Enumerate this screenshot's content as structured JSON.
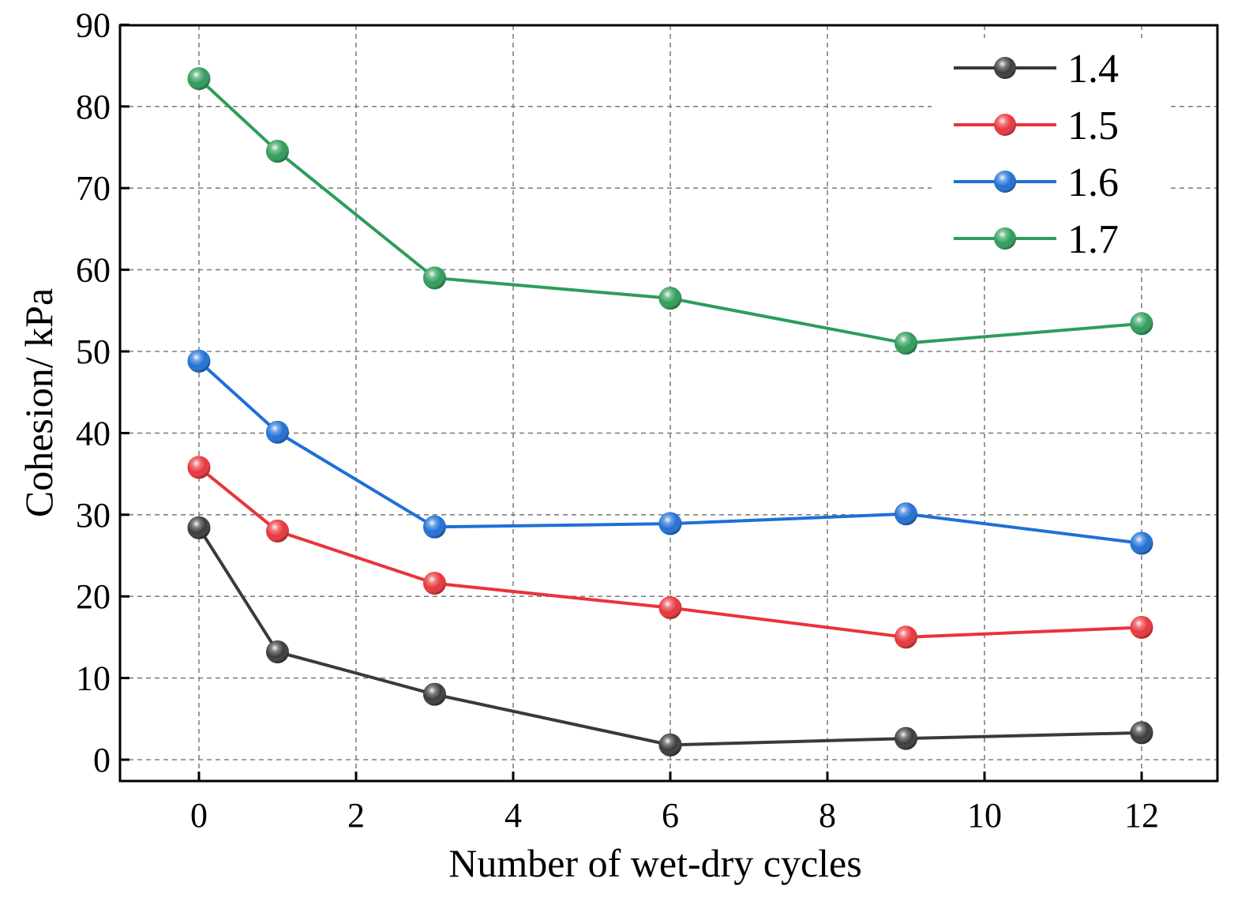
{
  "chart_data": {
    "type": "line",
    "title": "",
    "xlabel": "Number of wet-dry cycles",
    "ylabel": "Cohesion/ kPa",
    "xlim": [
      -1,
      13
    ],
    "ylim": [
      -2.5,
      90
    ],
    "xticks": [
      0,
      2,
      4,
      6,
      8,
      10,
      12
    ],
    "yticks": [
      0,
      10,
      20,
      30,
      40,
      50,
      60,
      70,
      80,
      90
    ],
    "grid": true,
    "legend_position": "top-right",
    "x": [
      0,
      1,
      3,
      6,
      9,
      12
    ],
    "series": [
      {
        "name": "1.4",
        "color": "#3a3a3a",
        "values": [
          28.4,
          13.2,
          8.0,
          1.8,
          2.6,
          3.3
        ]
      },
      {
        "name": "1.5",
        "color": "#e8343a",
        "values": [
          35.8,
          28.0,
          21.6,
          18.6,
          15.0,
          16.2
        ]
      },
      {
        "name": "1.6",
        "color": "#1f6fd6",
        "values": [
          48.8,
          40.1,
          28.5,
          28.9,
          30.1,
          26.5
        ]
      },
      {
        "name": "1.7",
        "color": "#2e9c5a",
        "values": [
          83.4,
          74.5,
          59.0,
          56.5,
          51.0,
          53.4
        ]
      }
    ]
  }
}
